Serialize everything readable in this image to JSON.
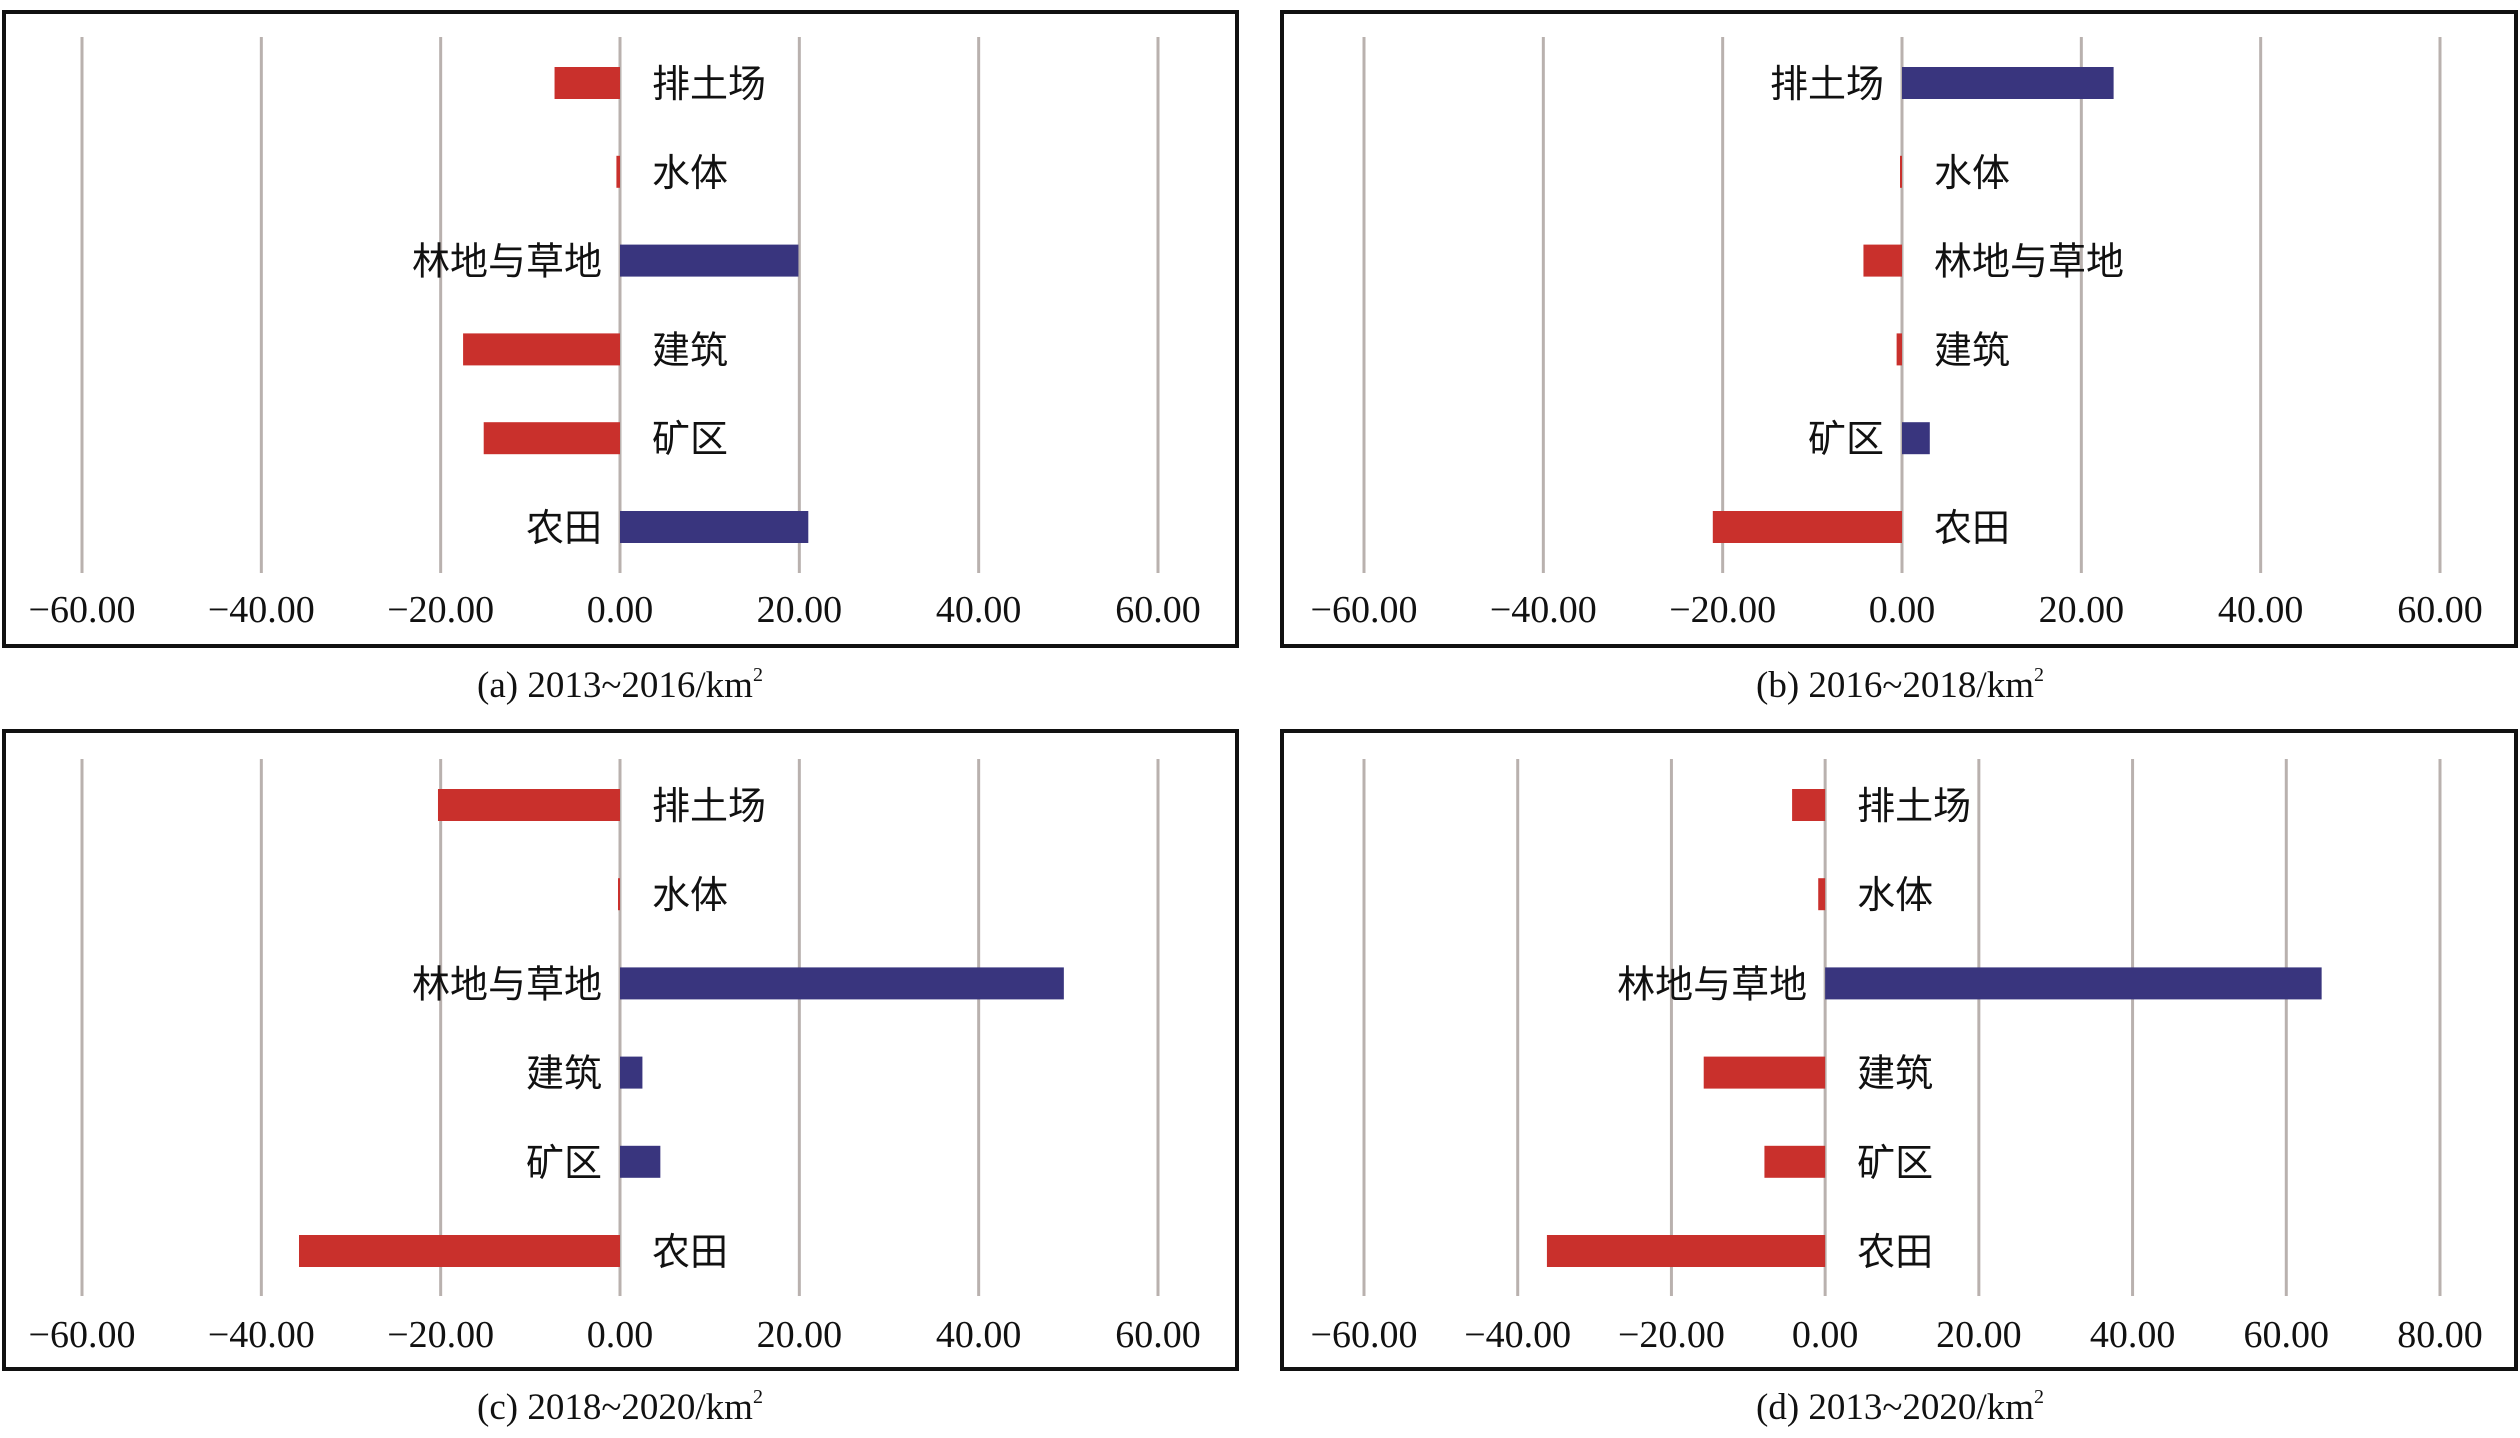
{
  "figure": {
    "bar_colors": {
      "decrease": "#c9302c",
      "increase": "#39357e"
    },
    "gridline_color": "#b9b1ae"
  },
  "chart_data": [
    {
      "id": "a",
      "type": "bar",
      "orientation": "horizontal",
      "caption": "(a) 2013~2016/km",
      "caption_sup": "2",
      "categories": [
        "排土场",
        "水体",
        "林地与草地",
        "建筑",
        "矿区",
        "农田"
      ],
      "values": [
        -7.3,
        -0.4,
        19.9,
        -17.5,
        -15.2,
        21.0
      ],
      "xlim": [
        -60,
        60
      ],
      "xticks": [
        -60,
        -40,
        -20,
        0,
        20,
        40,
        60
      ],
      "xtick_labels": [
        "−60.00",
        "−40.00",
        "−20.00",
        "0.00",
        "20.00",
        "40.00",
        "60.00"
      ],
      "xlabel": "",
      "ylabel": "",
      "grid": "vertical",
      "legend": "none"
    },
    {
      "id": "b",
      "type": "bar",
      "orientation": "horizontal",
      "caption": "(b) 2016~2018/km",
      "caption_sup": "2",
      "categories": [
        "排土场",
        "水体",
        "林地与草地",
        "建筑",
        "矿区",
        "农田"
      ],
      "values": [
        23.6,
        -0.2,
        -4.3,
        -0.6,
        3.1,
        -21.1
      ],
      "xlim": [
        -60,
        60
      ],
      "xticks": [
        -60,
        -40,
        -20,
        0,
        20,
        40,
        60
      ],
      "xtick_labels": [
        "−60.00",
        "−40.00",
        "−20.00",
        "0.00",
        "20.00",
        "40.00",
        "60.00"
      ],
      "xlabel": "",
      "ylabel": "",
      "grid": "vertical",
      "legend": "none"
    },
    {
      "id": "c",
      "type": "bar",
      "orientation": "horizontal",
      "caption": "(c) 2018~2020/km",
      "caption_sup": "2",
      "categories": [
        "排土场",
        "水体",
        "林地与草地",
        "建筑",
        "矿区",
        "农田"
      ],
      "values": [
        -20.3,
        -0.1,
        49.5,
        2.5,
        4.5,
        -35.8
      ],
      "xlim": [
        -60,
        60
      ],
      "xticks": [
        -60,
        -40,
        -20,
        0,
        20,
        40,
        60
      ],
      "xtick_labels": [
        "−60.00",
        "−40.00",
        "−20.00",
        "0.00",
        "20.00",
        "40.00",
        "60.00"
      ],
      "xlabel": "",
      "ylabel": "",
      "grid": "vertical",
      "legend": "none"
    },
    {
      "id": "d",
      "type": "bar",
      "orientation": "horizontal",
      "caption": "(d) 2013~2020/km",
      "caption_sup": "2",
      "categories": [
        "排土场",
        "水体",
        "林地与草地",
        "建筑",
        "矿区",
        "农田"
      ],
      "values": [
        -4.3,
        -0.9,
        64.6,
        -15.8,
        -7.9,
        -36.2
      ],
      "xlim": [
        -60,
        80
      ],
      "xticks": [
        -60,
        -40,
        -20,
        0,
        20,
        40,
        60,
        80
      ],
      "xtick_labels": [
        "−60.00",
        "−40.00",
        "−20.00",
        "0.00",
        "20.00",
        "40.00",
        "60.00",
        "80.00"
      ],
      "xlabel": "",
      "ylabel": "",
      "grid": "vertical",
      "legend": "none"
    }
  ]
}
